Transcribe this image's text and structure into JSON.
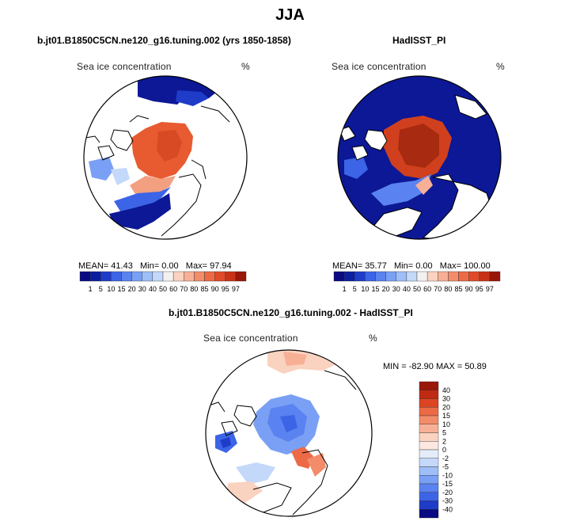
{
  "page_title": "JJA",
  "panels": [
    {
      "id": "model",
      "title": "b.jt01.B1850C5CN.ne120_g16.tuning.002 (yrs 1850-1858)",
      "variable": "Sea ice concentration",
      "units": "%",
      "stats": {
        "mean_label": "MEAN=",
        "mean": "41.43",
        "min_label": "Min=",
        "min": "0.00",
        "max_label": "Max=",
        "max": "97.94"
      }
    },
    {
      "id": "obs",
      "title": "HadISST_PI",
      "variable": "Sea ice concentration",
      "units": "%",
      "stats": {
        "mean_label": "MEAN=",
        "mean": "35.77",
        "min_label": "Min=",
        "min": "0.00",
        "max_label": "Max=",
        "max": "100.00"
      }
    },
    {
      "id": "diff",
      "title": "b.jt01.B1850C5CN.ne120_g16.tuning.002 - HadISST_PI",
      "variable": "Sea ice concentration",
      "units": "%",
      "stats_text": "MIN = -82.90 MAX =  50.89"
    }
  ],
  "colorbar_abs": {
    "labels": [
      "1",
      "5",
      "10",
      "15",
      "20",
      "30",
      "40",
      "50",
      "60",
      "70",
      "80",
      "85",
      "90",
      "95",
      "97"
    ],
    "colors": [
      "#0a0a82",
      "#0a1ea0",
      "#1e3cc8",
      "#3c64e6",
      "#5a82f0",
      "#7aa0f5",
      "#9ebef8",
      "#c4d8fa",
      "#f4f0f0",
      "#fad2c0",
      "#f7b096",
      "#f28c6a",
      "#ec6a46",
      "#e04a28",
      "#c83218",
      "#9a1608"
    ]
  },
  "colorbar_diff": {
    "labels": [
      "40",
      "30",
      "20",
      "15",
      "10",
      "5",
      "2",
      "0",
      "-2",
      "-5",
      "-10",
      "-15",
      "-20",
      "-30",
      "-40"
    ],
    "colors": [
      "#9a1608",
      "#c02a12",
      "#dc4422",
      "#ec6a46",
      "#f28c6a",
      "#f7b096",
      "#fad2c0",
      "#fce8e0",
      "#e4ecfa",
      "#c4d8fa",
      "#9ebef8",
      "#7aa0f5",
      "#5a82f0",
      "#3c64e6",
      "#1e3cc8",
      "#0a0a82"
    ]
  },
  "chart_data": [
    {
      "type": "heatmap",
      "title": "b.jt01.B1850C5CN.ne120_g16.tuning.002 (yrs 1850-1858)",
      "variable": "Sea ice concentration",
      "units": "%",
      "projection": "north polar stereographic",
      "mean": 41.43,
      "min": 0.0,
      "max": 97.94
    },
    {
      "type": "heatmap",
      "title": "HadISST_PI",
      "variable": "Sea ice concentration",
      "units": "%",
      "projection": "north polar stereographic",
      "mean": 35.77,
      "min": 0.0,
      "max": 100.0
    },
    {
      "type": "heatmap",
      "title": "b.jt01.B1850C5CN.ne120_g16.tuning.002 - HadISST_PI",
      "variable": "Sea ice concentration",
      "units": "%",
      "projection": "north polar stereographic",
      "min": -82.9,
      "max": 50.89
    }
  ]
}
